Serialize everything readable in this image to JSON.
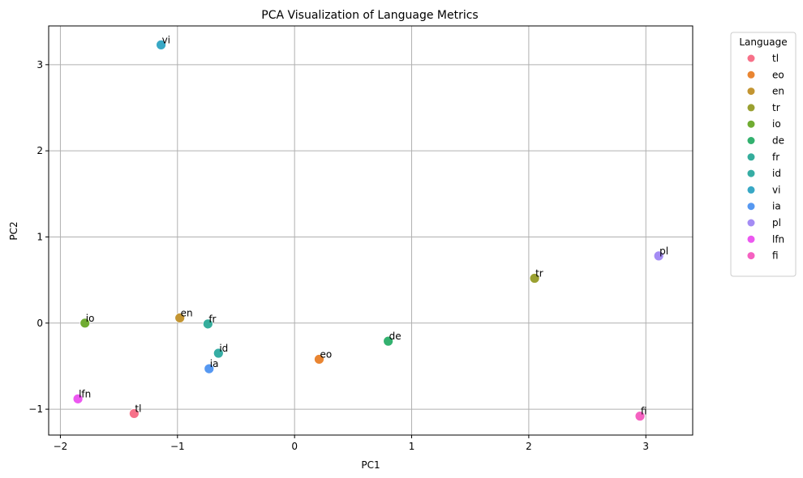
{
  "chart_data": {
    "type": "scatter",
    "title": "PCA Visualization of Language Metrics",
    "xlabel": "PC1",
    "ylabel": "PC2",
    "xlim": [
      -2.1,
      3.4
    ],
    "ylim": [
      -1.3,
      3.45
    ],
    "xticks": [
      -2,
      -1,
      0,
      1,
      2,
      3
    ],
    "yticks": [
      -1,
      0,
      1,
      2,
      3
    ],
    "tick_labels_x": [
      "−2",
      "−1",
      "0",
      "1",
      "2",
      "3"
    ],
    "tick_labels_y": [
      "−1",
      "0",
      "1",
      "2",
      "3"
    ],
    "grid": true,
    "legend": {
      "title": "Language",
      "placement": "outside-top-right"
    },
    "series": [
      {
        "name": "tl",
        "color": "#f77189",
        "x": -1.37,
        "y": -1.05
      },
      {
        "name": "eo",
        "color": "#e98532",
        "x": 0.21,
        "y": -0.42
      },
      {
        "name": "en",
        "color": "#c39532",
        "x": -0.98,
        "y": 0.06
      },
      {
        "name": "tr",
        "color": "#9aa031",
        "x": 2.05,
        "y": 0.52
      },
      {
        "name": "io",
        "color": "#70ac32",
        "x": -1.79,
        "y": 0.0
      },
      {
        "name": "de",
        "color": "#33b16f",
        "x": 0.8,
        "y": -0.21
      },
      {
        "name": "fr",
        "color": "#35ad9c",
        "x": -0.74,
        "y": -0.01
      },
      {
        "name": "id",
        "color": "#36ada4",
        "x": -0.65,
        "y": -0.35
      },
      {
        "name": "vi",
        "color": "#38a8c5",
        "x": -1.14,
        "y": 3.23
      },
      {
        "name": "ia",
        "color": "#5698f1",
        "x": -0.73,
        "y": -0.53
      },
      {
        "name": "pl",
        "color": "#a48cf4",
        "x": 3.11,
        "y": 0.78
      },
      {
        "name": "lfn",
        "color": "#ec58f0",
        "x": -1.85,
        "y": -0.88
      },
      {
        "name": "fi",
        "color": "#f561c1",
        "x": 2.95,
        "y": -1.08
      }
    ]
  }
}
